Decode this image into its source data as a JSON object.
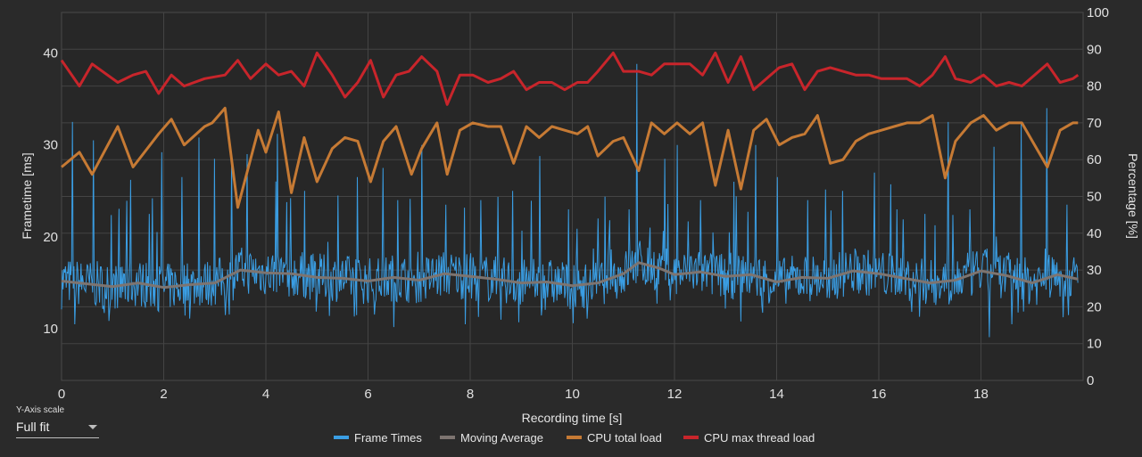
{
  "chart_data": {
    "type": "line",
    "xlabel": "Recording time [s]",
    "ylabel": "Frametime [ms]",
    "y2label": "Percentage [%]",
    "xlim": [
      0,
      20
    ],
    "ylim": [
      4.4,
      44.4
    ],
    "y2lim": [
      0,
      100
    ],
    "x_ticks": [
      "0",
      "2",
      "4",
      "6",
      "8",
      "10",
      "12",
      "14",
      "16",
      "18"
    ],
    "y_ticks": [
      "10",
      "20",
      "30",
      "40"
    ],
    "y2_ticks": [
      "0",
      "10",
      "20",
      "30",
      "40",
      "50",
      "60",
      "70",
      "80",
      "90",
      "100"
    ],
    "grid": true,
    "legend_position": "bottom",
    "series": [
      {
        "name": "Frame Times",
        "axis": "left",
        "color": "#3a9ee4",
        "baseline_ms": 15.2,
        "frame_interval_s": 0.0152,
        "spikes": [
          {
            "x": 0.2,
            "y": 32.5
          },
          {
            "x": 0.62,
            "y": 30.5
          },
          {
            "x": 1.35,
            "y": 26.2
          },
          {
            "x": 1.95,
            "y": 29.2
          },
          {
            "x": 2.35,
            "y": 26.5
          },
          {
            "x": 2.68,
            "y": 30.8
          },
          {
            "x": 2.98,
            "y": 28.5
          },
          {
            "x": 3.32,
            "y": 28.5
          },
          {
            "x": 3.62,
            "y": 29.0
          },
          {
            "x": 4.22,
            "y": 31.2
          },
          {
            "x": 4.75,
            "y": 25.0
          },
          {
            "x": 5.4,
            "y": 24.5
          },
          {
            "x": 5.78,
            "y": 26.5
          },
          {
            "x": 6.28,
            "y": 27.5
          },
          {
            "x": 6.58,
            "y": 24.0
          },
          {
            "x": 7.05,
            "y": 30.0
          },
          {
            "x": 7.52,
            "y": 23.5
          },
          {
            "x": 8.2,
            "y": 24.0
          },
          {
            "x": 8.82,
            "y": 25.0
          },
          {
            "x": 9.35,
            "y": 28.8
          },
          {
            "x": 9.92,
            "y": 23.0
          },
          {
            "x": 10.5,
            "y": 22.0
          },
          {
            "x": 11.1,
            "y": 23.0
          },
          {
            "x": 11.25,
            "y": 38.8
          },
          {
            "x": 11.8,
            "y": 28.5
          },
          {
            "x": 12.05,
            "y": 30.0
          },
          {
            "x": 12.5,
            "y": 24.0
          },
          {
            "x": 13.15,
            "y": 26.0
          },
          {
            "x": 13.58,
            "y": 30.0
          },
          {
            "x": 14.0,
            "y": 26.5
          },
          {
            "x": 14.6,
            "y": 24.0
          },
          {
            "x": 15.28,
            "y": 25.0
          },
          {
            "x": 15.9,
            "y": 27.0
          },
          {
            "x": 16.35,
            "y": 23.0
          },
          {
            "x": 16.9,
            "y": 22.5
          },
          {
            "x": 17.35,
            "y": 32.5
          },
          {
            "x": 17.78,
            "y": 23.0
          },
          {
            "x": 18.25,
            "y": 29.8
          },
          {
            "x": 18.78,
            "y": 32.5
          },
          {
            "x": 19.28,
            "y": 34.0
          },
          {
            "x": 19.68,
            "y": 23.5
          }
        ],
        "dips": [
          {
            "x": 0.25,
            "y": 10.5
          },
          {
            "x": 3.2,
            "y": 11.5
          },
          {
            "x": 6.5,
            "y": 10.2
          },
          {
            "x": 7.9,
            "y": 10.5
          },
          {
            "x": 8.6,
            "y": 11.0
          },
          {
            "x": 13.3,
            "y": 10.8
          },
          {
            "x": 18.15,
            "y": 9.1
          },
          {
            "x": 18.6,
            "y": 10.5
          },
          {
            "x": 19.7,
            "y": 11.5
          }
        ]
      },
      {
        "name": "Moving Average",
        "axis": "left",
        "color": "#7d7470",
        "x": [
          0,
          0.5,
          1,
          1.5,
          2,
          2.5,
          3,
          3.5,
          4,
          4.5,
          5,
          5.5,
          6,
          6.5,
          7,
          7.5,
          8,
          8.5,
          9,
          9.5,
          10,
          10.5,
          11,
          11.3,
          11.7,
          12,
          12.5,
          13,
          13.5,
          14,
          14.5,
          15,
          15.5,
          16,
          16.5,
          17,
          17.5,
          18,
          18.5,
          19,
          19.5,
          19.9
        ],
        "y": [
          15.2,
          14.9,
          14.6,
          15.0,
          14.5,
          14.8,
          15.0,
          16.4,
          16.1,
          16.0,
          15.6,
          15.5,
          15.2,
          15.6,
          15.3,
          16.0,
          15.7,
          15.4,
          15.0,
          15.1,
          14.7,
          15.0,
          16.0,
          17.2,
          16.6,
          15.9,
          16.2,
          15.7,
          15.9,
          15.1,
          15.6,
          15.5,
          16.3,
          16.0,
          15.5,
          15.0,
          15.3,
          16.3,
          15.8,
          15.0,
          15.9,
          15.4
        ]
      },
      {
        "name": "CPU total load",
        "axis": "right",
        "color": "#c67a34",
        "x": [
          0,
          0.35,
          0.6,
          1.1,
          1.4,
          1.9,
          2.15,
          2.4,
          2.8,
          2.95,
          3.2,
          3.45,
          3.85,
          4.0,
          4.25,
          4.5,
          4.75,
          5.0,
          5.3,
          5.55,
          5.8,
          6.05,
          6.3,
          6.55,
          6.85,
          7.05,
          7.35,
          7.55,
          7.8,
          8.05,
          8.35,
          8.6,
          8.85,
          9.1,
          9.35,
          9.6,
          9.85,
          10.1,
          10.3,
          10.5,
          10.8,
          11.0,
          11.3,
          11.55,
          11.8,
          12.05,
          12.3,
          12.55,
          12.8,
          13.05,
          13.3,
          13.55,
          13.8,
          14.05,
          14.3,
          14.55,
          14.8,
          15.05,
          15.3,
          15.55,
          15.8,
          16.05,
          16.3,
          16.55,
          16.8,
          17.05,
          17.3,
          17.5,
          17.8,
          18.05,
          18.3,
          18.55,
          18.8,
          19.05,
          19.3,
          19.55,
          19.8,
          19.9
        ],
        "y": [
          58,
          62,
          56,
          69,
          58,
          67,
          71,
          64,
          69,
          70,
          74,
          47,
          68,
          62,
          73,
          51,
          66,
          54,
          63,
          66,
          65,
          54,
          65,
          69,
          56,
          63,
          70,
          56,
          68,
          70,
          69,
          69,
          59,
          69,
          66,
          69,
          68,
          67,
          69,
          61,
          65,
          66,
          57,
          70,
          67,
          70,
          67,
          70,
          53,
          68,
          52,
          68,
          71,
          64,
          66,
          67,
          72,
          59,
          60,
          65,
          67,
          68,
          69,
          70,
          70,
          72,
          55,
          65,
          70,
          72,
          68,
          70,
          70,
          64,
          58,
          68,
          70,
          70
        ]
      },
      {
        "name": "CPU max thread load",
        "axis": "right",
        "color": "#c8252b",
        "x": [
          0,
          0.35,
          0.6,
          1.1,
          1.4,
          1.65,
          1.9,
          2.15,
          2.4,
          2.8,
          3.2,
          3.45,
          3.7,
          4.0,
          4.25,
          4.5,
          4.75,
          5.0,
          5.3,
          5.55,
          5.8,
          6.05,
          6.3,
          6.55,
          6.8,
          7.05,
          7.35,
          7.55,
          7.8,
          8.05,
          8.35,
          8.6,
          8.85,
          9.1,
          9.35,
          9.6,
          9.85,
          10.1,
          10.3,
          10.5,
          10.8,
          11.0,
          11.3,
          11.55,
          11.8,
          12.05,
          12.3,
          12.55,
          12.8,
          13.05,
          13.3,
          13.55,
          13.8,
          14.05,
          14.3,
          14.55,
          14.8,
          15.05,
          15.3,
          15.55,
          15.8,
          16.05,
          16.3,
          16.55,
          16.8,
          17.05,
          17.3,
          17.5,
          17.8,
          18.05,
          18.3,
          18.55,
          18.8,
          19.05,
          19.3,
          19.55,
          19.8,
          19.9
        ],
        "y": [
          87,
          80,
          86,
          81,
          83,
          84,
          78,
          83,
          80,
          82,
          83,
          87,
          82,
          86,
          83,
          84,
          80,
          89,
          83,
          77,
          81,
          87,
          77,
          83,
          84,
          88,
          84,
          75,
          83,
          83,
          81,
          82,
          84,
          79,
          81,
          81,
          79,
          81,
          81,
          84,
          89,
          84,
          84,
          83,
          86,
          86,
          86,
          83,
          89,
          81,
          88,
          79,
          82,
          85,
          86,
          79,
          84,
          85,
          84,
          83,
          83,
          82,
          82,
          82,
          80,
          83,
          88,
          82,
          81,
          83,
          80,
          81,
          80,
          83,
          86,
          81,
          82,
          83
        ]
      }
    ]
  },
  "controls": {
    "y_axis_scale_label": "Y-Axis scale",
    "y_axis_scale_value": "Full fit"
  }
}
